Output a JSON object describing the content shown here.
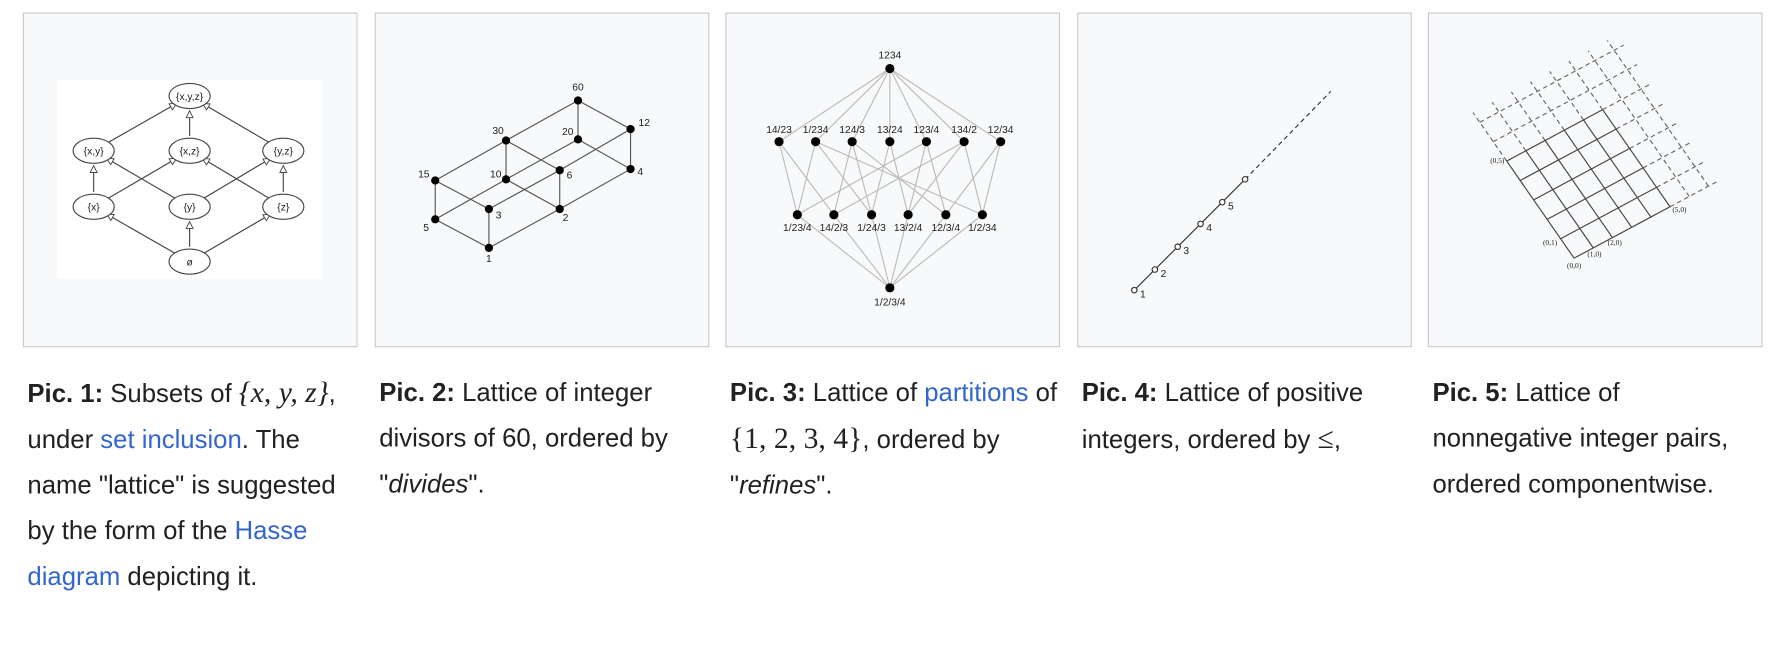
{
  "panels": [
    {
      "caption": [
        {
          "text": "Pic. 1:",
          "style": "bold"
        },
        {
          "text": " Subsets of "
        },
        {
          "text": "{x, y, z}",
          "style": "math"
        },
        {
          "text": ", under "
        },
        {
          "text": "set inclusion",
          "style": "link"
        },
        {
          "text": ". The name \"lattice\" is suggested by the form of the "
        },
        {
          "text": "Hasse diagram",
          "style": "link"
        },
        {
          "text": " depicting it."
        }
      ],
      "labels": [
        "{x,y,z}",
        "{x,y}",
        "{x,z}",
        "{y,z}",
        "{x}",
        "{y}",
        "{z}",
        "ø"
      ]
    },
    {
      "caption": [
        {
          "text": "Pic. 2:",
          "style": "bold"
        },
        {
          "text": " Lattice of integer divisors of 60, ordered by \""
        },
        {
          "text": "divides",
          "style": "italic"
        },
        {
          "text": "\"."
        }
      ],
      "labels": [
        "60",
        "30",
        "20",
        "12",
        "15",
        "10",
        "6",
        "4",
        "5",
        "3",
        "2",
        "1"
      ]
    },
    {
      "caption": [
        {
          "text": "Pic. 3:",
          "style": "bold"
        },
        {
          "text": " Lattice of "
        },
        {
          "text": "partitions",
          "style": "link"
        },
        {
          "text": " of "
        },
        {
          "text": "{1, 2, 3, 4}",
          "style": "math-up"
        },
        {
          "text": ", ordered by \""
        },
        {
          "text": "refines",
          "style": "italic"
        },
        {
          "text": "\"."
        }
      ],
      "labels": [
        "1234",
        "14/23",
        "1/234",
        "124/3",
        "13/24",
        "123/4",
        "134/2",
        "12/34",
        "1/23/4",
        "14/2/3",
        "1/24/3",
        "13/2/4",
        "12/3/4",
        "1/2/34",
        "1/2/3/4"
      ]
    },
    {
      "caption": [
        {
          "text": "Pic. 4:",
          "style": "bold"
        },
        {
          "text": " Lattice of positive integers, ordered by "
        },
        {
          "text": "≤",
          "style": "math-up"
        },
        {
          "text": ","
        }
      ],
      "labels": [
        "1",
        "2",
        "3",
        "4",
        "5"
      ]
    },
    {
      "caption": [
        {
          "text": "Pic. 5:",
          "style": "bold"
        },
        {
          "text": " Lattice of nonnegative integer pairs, ordered componentwise."
        }
      ],
      "labels": [
        "(0,5)",
        "(5,0)",
        "(0,1)",
        "(1,0)",
        "(2,0)",
        "(0,0)"
      ]
    }
  ]
}
